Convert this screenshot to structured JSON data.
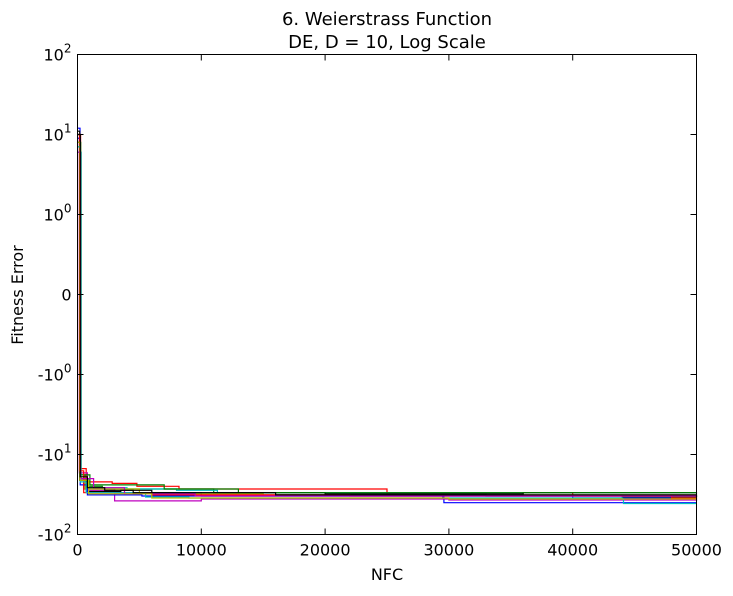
{
  "chart_data": {
    "type": "line",
    "title_line1": "6.   Weierstrass Function",
    "title_line2": "DE, D = 10, Log Scale",
    "xlabel": "NFC",
    "ylabel": "Fitness Error",
    "xlim": [
      0,
      50000
    ],
    "yscale": "symlog",
    "ylim": [
      -100,
      100
    ],
    "grid": false,
    "x_ticks": [
      {
        "value": 0,
        "label": "0"
      },
      {
        "value": 10000,
        "label": "10000"
      },
      {
        "value": 20000,
        "label": "20000"
      },
      {
        "value": 30000,
        "label": "30000"
      },
      {
        "value": 40000,
        "label": "40000"
      },
      {
        "value": 50000,
        "label": "50000"
      }
    ],
    "y_ticks": [
      {
        "value": 100,
        "base": "10",
        "exp": "2",
        "sign": ""
      },
      {
        "value": 10,
        "base": "10",
        "exp": "1",
        "sign": ""
      },
      {
        "value": 1,
        "base": "10",
        "exp": "0",
        "sign": ""
      },
      {
        "value": 0,
        "base": "0",
        "exp": "",
        "sign": ""
      },
      {
        "value": -1,
        "base": "10",
        "exp": "0",
        "sign": "-"
      },
      {
        "value": -10,
        "base": "10",
        "exp": "1",
        "sign": "-"
      },
      {
        "value": -100,
        "base": "10",
        "exp": "2",
        "sign": "-"
      }
    ],
    "series": [
      {
        "color": "#0000ff",
        "values": [
          [
            0,
            12
          ],
          [
            200,
            -20
          ],
          [
            500,
            -27
          ],
          [
            3000,
            -30
          ],
          [
            10000,
            -33
          ],
          [
            29500,
            -34
          ],
          [
            29600,
            -40
          ],
          [
            50000,
            -40
          ]
        ]
      },
      {
        "color": "#008000",
        "values": [
          [
            0,
            8
          ],
          [
            200,
            -18
          ],
          [
            600,
            -25
          ],
          [
            2000,
            -27
          ],
          [
            11000,
            -30
          ],
          [
            20000,
            -31
          ],
          [
            33000,
            -33
          ],
          [
            44000,
            -34
          ],
          [
            50000,
            -34
          ]
        ]
      },
      {
        "color": "#ff0000",
        "values": [
          [
            0,
            10
          ],
          [
            250,
            -15
          ],
          [
            700,
            -22
          ],
          [
            2800,
            -23
          ],
          [
            4800,
            -25
          ],
          [
            8200,
            -27
          ],
          [
            25000,
            -30
          ],
          [
            40000,
            -33
          ],
          [
            50000,
            -38
          ]
        ]
      },
      {
        "color": "#00bfbf",
        "values": [
          [
            0,
            6
          ],
          [
            300,
            -20
          ],
          [
            900,
            -26
          ],
          [
            4000,
            -27
          ],
          [
            8000,
            -28
          ],
          [
            11300,
            -30
          ],
          [
            50000,
            -30
          ]
        ]
      },
      {
        "color": "#bf00bf",
        "values": [
          [
            0,
            9
          ],
          [
            150,
            -17
          ],
          [
            800,
            -28
          ],
          [
            3000,
            -38
          ],
          [
            10000,
            -36
          ],
          [
            30000,
            -37
          ],
          [
            50000,
            -37
          ]
        ]
      },
      {
        "color": "#bfbf00",
        "values": [
          [
            0,
            7
          ],
          [
            200,
            -19
          ],
          [
            600,
            -27
          ],
          [
            5000,
            -31
          ],
          [
            15000,
            -32
          ],
          [
            50000,
            -32
          ]
        ]
      },
      {
        "color": "#000000",
        "values": [
          [
            0,
            11
          ],
          [
            180,
            -21
          ],
          [
            700,
            -29
          ],
          [
            3500,
            -28
          ],
          [
            6000,
            -30
          ],
          [
            20000,
            -31
          ],
          [
            36000,
            -30
          ],
          [
            50000,
            -30
          ]
        ]
      },
      {
        "color": "#0000ff",
        "values": [
          [
            0,
            9
          ],
          [
            220,
            -24
          ],
          [
            800,
            -32
          ],
          [
            5200,
            -33
          ],
          [
            18000,
            -33
          ],
          [
            40000,
            -35
          ],
          [
            50000,
            -35
          ]
        ]
      },
      {
        "color": "#008000",
        "values": [
          [
            0,
            8
          ],
          [
            260,
            -18
          ],
          [
            1000,
            -24
          ],
          [
            7000,
            -27
          ],
          [
            13000,
            -30
          ],
          [
            50000,
            -31
          ]
        ]
      },
      {
        "color": "#ff0000",
        "values": [
          [
            0,
            10
          ],
          [
            160,
            -16
          ],
          [
            500,
            -30
          ],
          [
            6000,
            -32
          ],
          [
            22000,
            -33
          ],
          [
            48000,
            -35
          ],
          [
            50000,
            -35
          ]
        ]
      },
      {
        "color": "#00bfbf",
        "values": [
          [
            0,
            7
          ],
          [
            210,
            -22
          ],
          [
            700,
            -30
          ],
          [
            5500,
            -34
          ],
          [
            9000,
            -35
          ],
          [
            44000,
            -36
          ],
          [
            44100,
            -41
          ],
          [
            50000,
            -41
          ]
        ]
      },
      {
        "color": "#bf00bf",
        "values": [
          [
            0,
            6
          ],
          [
            240,
            -20
          ],
          [
            1300,
            -26
          ],
          [
            3800,
            -31
          ],
          [
            9500,
            -33
          ],
          [
            50000,
            -33
          ]
        ]
      },
      {
        "color": "#bfbf00",
        "values": [
          [
            0,
            8
          ],
          [
            190,
            -21
          ],
          [
            900,
            -31
          ],
          [
            6000,
            -35
          ],
          [
            30000,
            -36
          ],
          [
            50000,
            -36
          ]
        ]
      },
      {
        "color": "#000000",
        "values": [
          [
            0,
            10
          ],
          [
            230,
            -19
          ],
          [
            800,
            -26
          ],
          [
            2200,
            -28
          ],
          [
            4500,
            -30
          ],
          [
            16000,
            -32
          ],
          [
            50000,
            -34
          ]
        ]
      }
    ]
  }
}
